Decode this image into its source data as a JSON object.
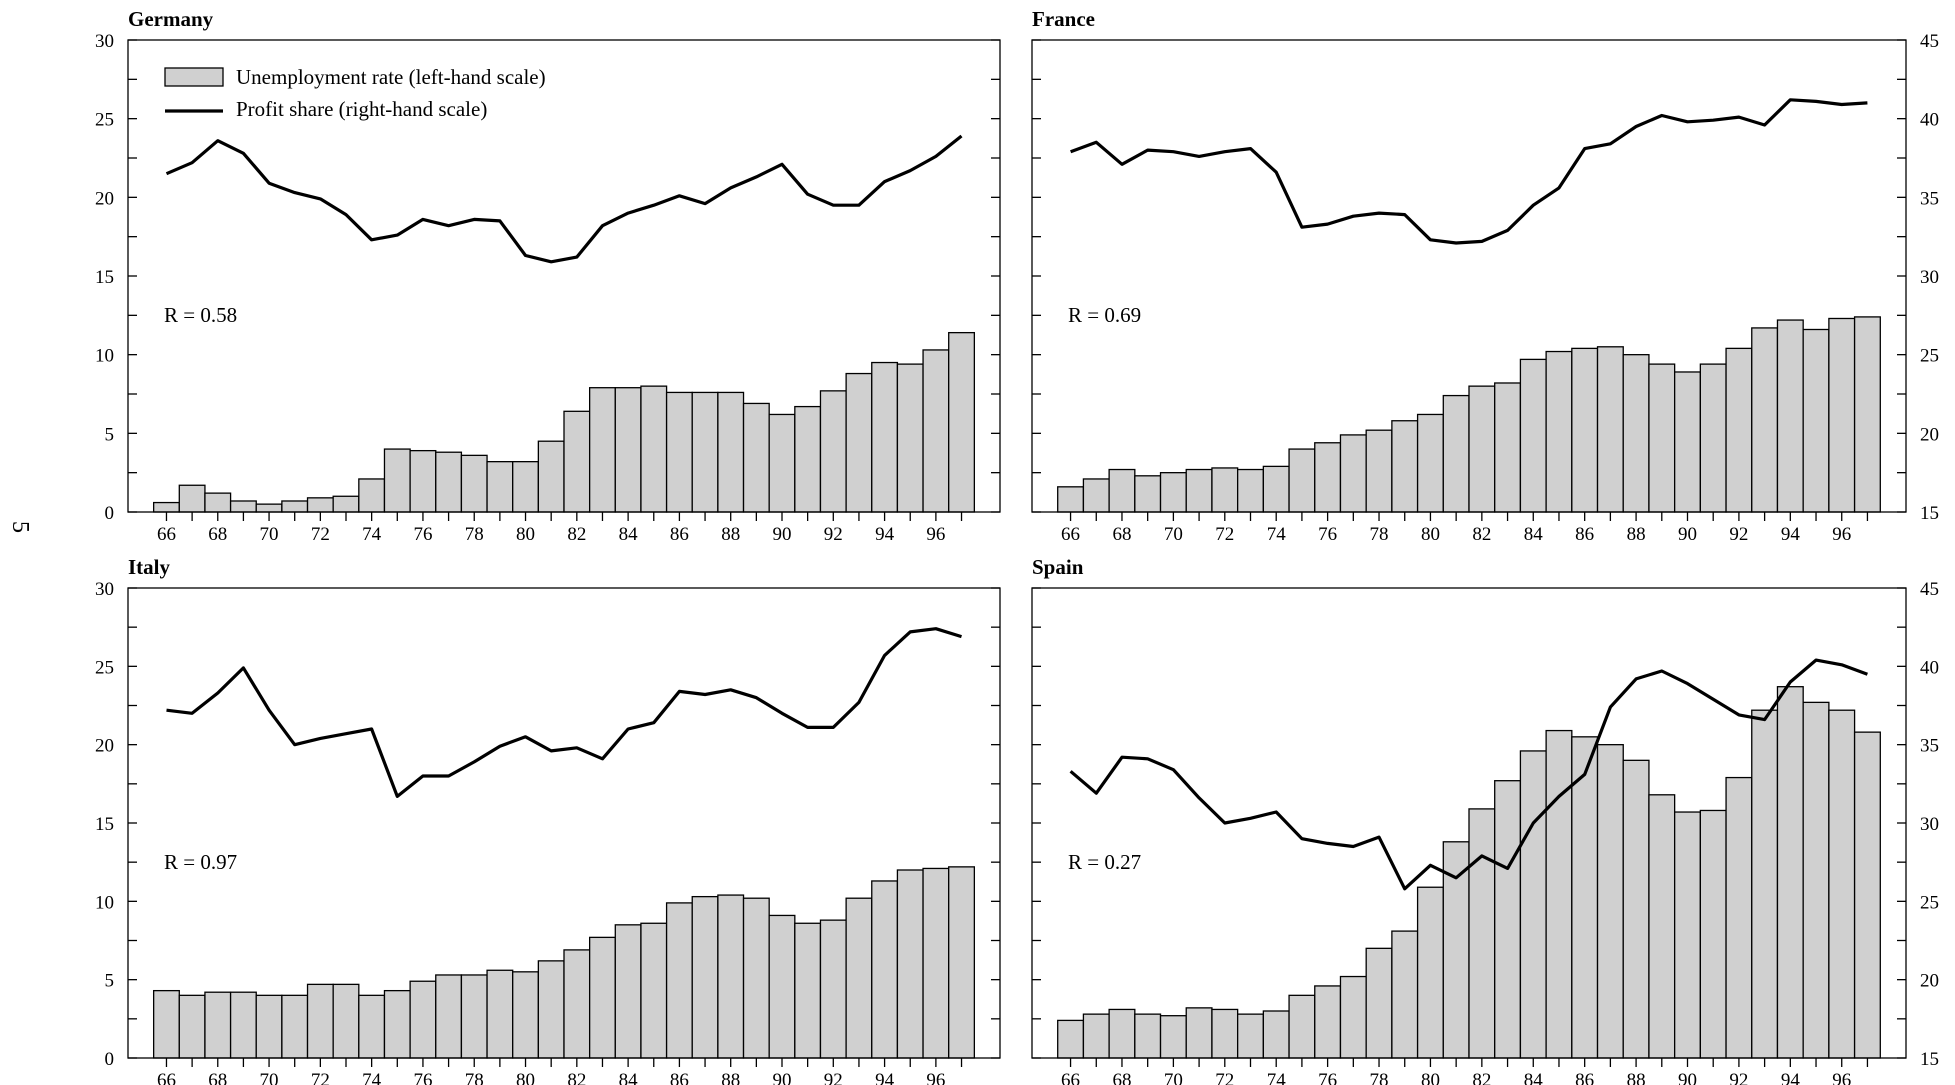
{
  "page": {
    "number": "5"
  },
  "legend": {
    "unemployment": "Unemployment rate (left-hand scale)",
    "profit": "Profit share (right-hand scale)"
  },
  "chart_data": [
    {
      "type": "bar",
      "title": "Germany",
      "annotation": "R = 0.58",
      "x": [
        66,
        67,
        68,
        69,
        70,
        71,
        72,
        73,
        74,
        75,
        76,
        77,
        78,
        79,
        80,
        81,
        82,
        83,
        84,
        85,
        86,
        87,
        88,
        89,
        90,
        91,
        92,
        93,
        94,
        95,
        96,
        97
      ],
      "x_tick_labels": [
        "66",
        "68",
        "70",
        "72",
        "74",
        "76",
        "78",
        "80",
        "82",
        "84",
        "86",
        "88",
        "90",
        "92",
        "94",
        "96"
      ],
      "left_ylim": [
        0,
        30
      ],
      "left_ticks": [
        0,
        5,
        10,
        15,
        20,
        25,
        30
      ],
      "right_ylim": [
        15,
        45
      ],
      "series": [
        {
          "name": "Unemployment rate (left-hand scale)",
          "kind": "bar",
          "axis": "left",
          "values": [
            0.6,
            1.7,
            1.2,
            0.7,
            0.5,
            0.7,
            0.9,
            1.0,
            2.1,
            4.0,
            3.9,
            3.8,
            3.6,
            3.2,
            3.2,
            4.5,
            6.4,
            7.9,
            7.9,
            8.0,
            7.6,
            7.6,
            7.6,
            6.9,
            6.2,
            6.7,
            7.7,
            8.8,
            9.5,
            9.4,
            10.3,
            11.4
          ]
        },
        {
          "name": "Profit share (right-hand scale)",
          "kind": "line",
          "axis": "right",
          "values": [
            36.5,
            37.2,
            38.6,
            37.8,
            35.9,
            35.3,
            34.9,
            33.9,
            32.3,
            32.6,
            33.6,
            33.2,
            33.6,
            33.5,
            31.3,
            30.9,
            31.2,
            33.2,
            34.0,
            34.5,
            35.1,
            34.6,
            35.6,
            36.3,
            37.1,
            35.2,
            34.5,
            34.5,
            36.0,
            36.7,
            37.6,
            38.9
          ]
        }
      ]
    },
    {
      "type": "bar",
      "title": "France",
      "annotation": "R = 0.69",
      "x": [
        66,
        67,
        68,
        69,
        70,
        71,
        72,
        73,
        74,
        75,
        76,
        77,
        78,
        79,
        80,
        81,
        82,
        83,
        84,
        85,
        86,
        87,
        88,
        89,
        90,
        91,
        92,
        93,
        94,
        95,
        96,
        97
      ],
      "x_tick_labels": [
        "66",
        "68",
        "70",
        "72",
        "74",
        "76",
        "78",
        "80",
        "82",
        "84",
        "86",
        "88",
        "90",
        "92",
        "94",
        "96"
      ],
      "left_ylim": [
        0,
        30
      ],
      "right_ylim": [
        15,
        45
      ],
      "right_ticks": [
        15,
        20,
        25,
        30,
        35,
        40,
        45
      ],
      "series": [
        {
          "name": "Unemployment rate (left-hand scale)",
          "kind": "bar",
          "axis": "left",
          "values": [
            1.6,
            2.1,
            2.7,
            2.3,
            2.5,
            2.7,
            2.8,
            2.7,
            2.9,
            4.0,
            4.4,
            4.9,
            5.2,
            5.8,
            6.2,
            7.4,
            8.0,
            8.2,
            9.7,
            10.2,
            10.4,
            10.5,
            10.0,
            9.4,
            8.9,
            9.4,
            10.4,
            11.7,
            12.2,
            11.6,
            12.3,
            12.4
          ]
        },
        {
          "name": "Profit share (right-hand scale)",
          "kind": "line",
          "axis": "right",
          "values": [
            37.9,
            38.5,
            37.1,
            38.0,
            37.9,
            37.6,
            37.9,
            38.1,
            36.6,
            33.1,
            33.3,
            33.8,
            34.0,
            33.9,
            32.3,
            32.1,
            32.2,
            32.9,
            34.5,
            35.6,
            38.1,
            38.4,
            39.5,
            40.2,
            39.8,
            39.9,
            40.1,
            39.6,
            41.2,
            41.1,
            40.9,
            41.0
          ]
        }
      ]
    },
    {
      "type": "bar",
      "title": "Italy",
      "annotation": "R = 0.97",
      "x": [
        66,
        67,
        68,
        69,
        70,
        71,
        72,
        73,
        74,
        75,
        76,
        77,
        78,
        79,
        80,
        81,
        82,
        83,
        84,
        85,
        86,
        87,
        88,
        89,
        90,
        91,
        92,
        93,
        94,
        95,
        96,
        97
      ],
      "x_tick_labels": [
        "66",
        "68",
        "70",
        "72",
        "74",
        "76",
        "78",
        "80",
        "82",
        "84",
        "86",
        "88",
        "90",
        "92",
        "94",
        "96"
      ],
      "left_ylim": [
        0,
        30
      ],
      "left_ticks": [
        0,
        5,
        10,
        15,
        20,
        25,
        30
      ],
      "right_ylim": [
        15,
        45
      ],
      "series": [
        {
          "name": "Unemployment rate (left-hand scale)",
          "kind": "bar",
          "axis": "left",
          "values": [
            4.3,
            4.0,
            4.2,
            4.2,
            4.0,
            4.0,
            4.7,
            4.7,
            4.0,
            4.3,
            4.9,
            5.3,
            5.3,
            5.6,
            5.5,
            6.2,
            6.9,
            7.7,
            8.5,
            8.6,
            9.9,
            10.3,
            10.4,
            10.2,
            9.1,
            8.6,
            8.8,
            10.2,
            11.3,
            12.0,
            12.1,
            12.2
          ]
        },
        {
          "name": "Profit share (right-hand scale)",
          "kind": "line",
          "axis": "right",
          "values": [
            37.2,
            37.0,
            38.3,
            39.9,
            37.2,
            35.0,
            35.4,
            35.7,
            36.0,
            31.7,
            33.0,
            33.0,
            33.9,
            34.9,
            35.5,
            34.6,
            34.8,
            34.1,
            36.0,
            36.4,
            38.4,
            38.2,
            38.5,
            38.0,
            37.0,
            36.1,
            36.1,
            37.7,
            40.7,
            42.2,
            42.4,
            41.9
          ]
        }
      ]
    },
    {
      "type": "bar",
      "title": "Spain",
      "annotation": "R = 0.27",
      "x": [
        66,
        67,
        68,
        69,
        70,
        71,
        72,
        73,
        74,
        75,
        76,
        77,
        78,
        79,
        80,
        81,
        82,
        83,
        84,
        85,
        86,
        87,
        88,
        89,
        90,
        91,
        92,
        93,
        94,
        95,
        96,
        97
      ],
      "x_tick_labels": [
        "66",
        "68",
        "70",
        "72",
        "74",
        "76",
        "78",
        "80",
        "82",
        "84",
        "86",
        "88",
        "90",
        "92",
        "94",
        "96"
      ],
      "left_ylim": [
        0,
        30
      ],
      "right_ylim": [
        15,
        45
      ],
      "right_ticks": [
        15,
        20,
        25,
        30,
        35,
        40,
        45
      ],
      "series": [
        {
          "name": "Unemployment rate (left-hand scale)",
          "kind": "bar",
          "axis": "left",
          "values": [
            2.4,
            2.8,
            3.1,
            2.8,
            2.7,
            3.2,
            3.1,
            2.8,
            3.0,
            4.0,
            4.6,
            5.2,
            7.0,
            8.1,
            10.9,
            13.8,
            15.9,
            17.7,
            19.6,
            20.9,
            20.5,
            20.0,
            19.0,
            16.8,
            15.7,
            15.8,
            17.9,
            22.2,
            23.7,
            22.7,
            22.2,
            20.8
          ]
        },
        {
          "name": "Profit share (right-hand scale)",
          "kind": "line",
          "axis": "right",
          "values": [
            33.3,
            31.9,
            34.2,
            34.1,
            33.4,
            31.6,
            30.0,
            30.3,
            30.7,
            29.0,
            28.7,
            28.5,
            29.1,
            25.8,
            27.3,
            26.5,
            27.9,
            27.1,
            30.0,
            31.7,
            33.1,
            37.4,
            39.2,
            39.7,
            38.9,
            37.9,
            36.9,
            36.6,
            39.0,
            40.4,
            40.1,
            39.5
          ]
        }
      ]
    }
  ]
}
